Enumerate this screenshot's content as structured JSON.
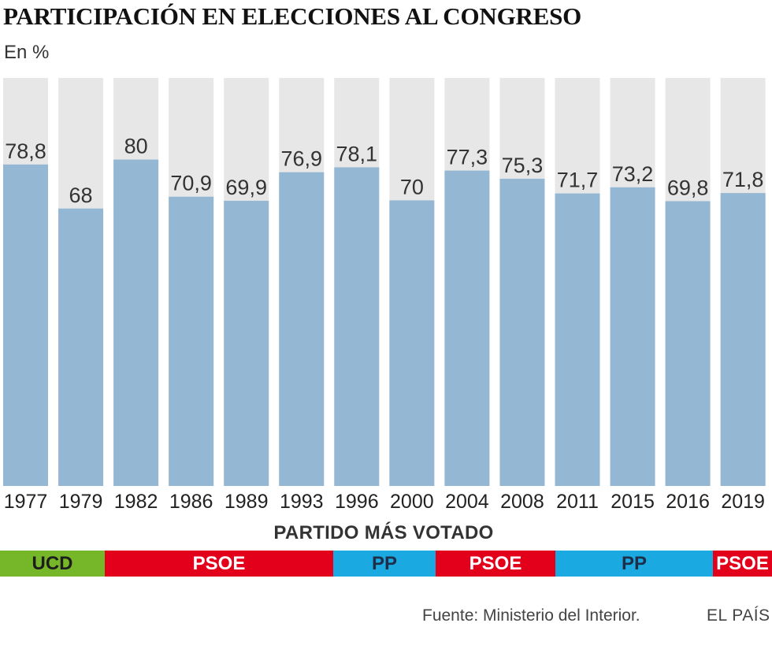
{
  "title": "PARTICIPACIÓN EN ELECCIONES AL CONGRESO",
  "subtitle": "En %",
  "colors": {
    "background_bar": "#e7e7e7",
    "value_bar": "#94b8d3",
    "UCD": "#76b729",
    "PSOE": "#e2001a",
    "PP": "#1ba9e2"
  },
  "chart_data": {
    "type": "bar",
    "title": "PARTICIPACIÓN EN ELECCIONES AL CONGRESO",
    "subtitle": "En %",
    "xlabel": "",
    "ylabel": "En %",
    "ylim": [
      0,
      100
    ],
    "grid": false,
    "categories": [
      "1977",
      "1979",
      "1982",
      "1986",
      "1989",
      "1993",
      "1996",
      "2000",
      "2004",
      "2008",
      "2011",
      "2015",
      "2016",
      "2019"
    ],
    "values": [
      78.8,
      68,
      80,
      70.9,
      69.9,
      76.9,
      78.1,
      70,
      77.3,
      75.3,
      71.7,
      73.2,
      69.8,
      71.8
    ],
    "value_labels": [
      "78,8",
      "68",
      "80",
      "70,9",
      "69,9",
      "76,9",
      "78,1",
      "70",
      "77,3",
      "75,3",
      "71,7",
      "73,2",
      "69,8",
      "71,8"
    ]
  },
  "parties": {
    "title": "PARTIDO MÁS VOTADO",
    "segments": [
      {
        "label": "UCD",
        "party": "UCD",
        "span": 2
      },
      {
        "label": "PSOE",
        "party": "PSOE",
        "span": 4
      },
      {
        "label": "PP",
        "party": "PP",
        "span": 2
      },
      {
        "label": "PSOE",
        "party": "PSOE",
        "span": 2
      },
      {
        "label": "PP",
        "party": "PP",
        "span": 3
      },
      {
        "label": "PSOE",
        "party": "PSOE",
        "span": 1
      }
    ]
  },
  "footer": {
    "source": "Fuente: Ministerio del Interior.",
    "brand": "EL PAÍS"
  }
}
